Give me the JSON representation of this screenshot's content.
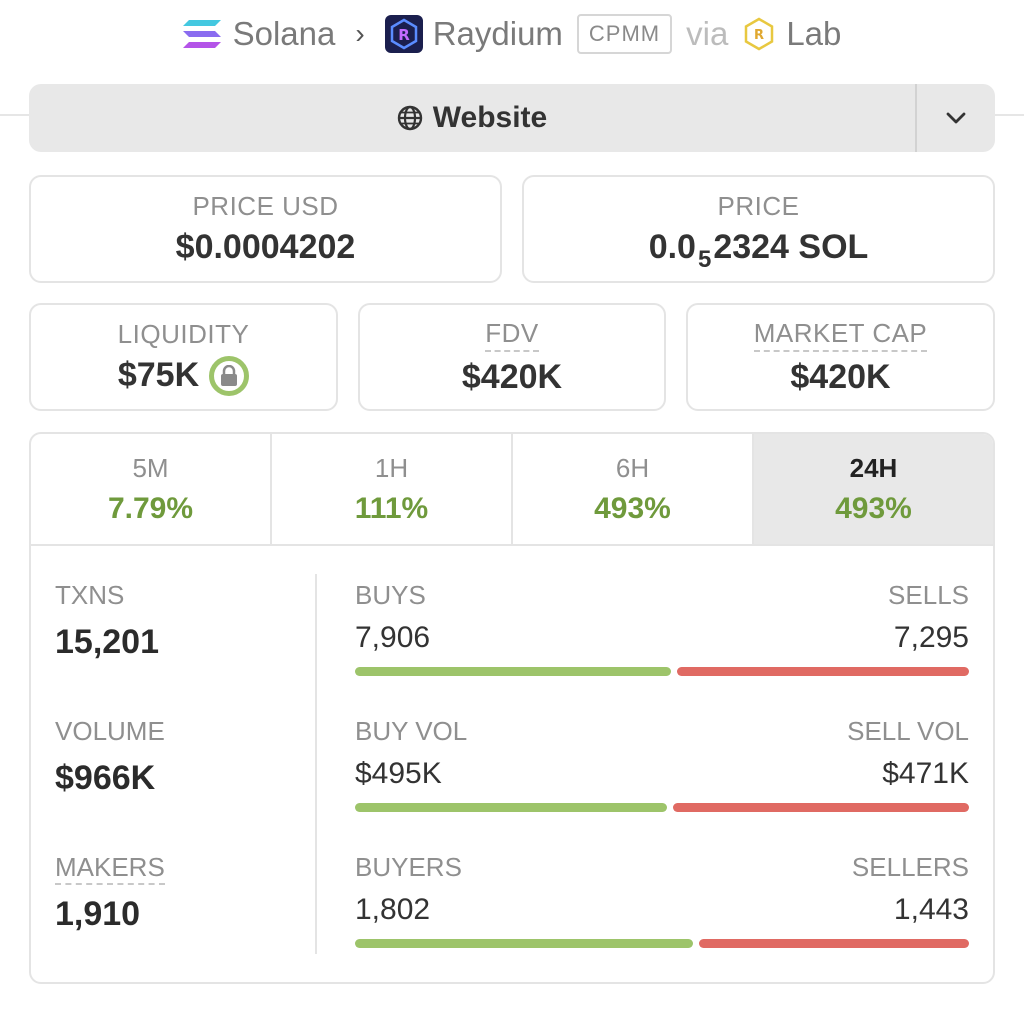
{
  "breadcrumb": {
    "chain": "Solana",
    "dex": "Raydium",
    "pool_type": "CPMM",
    "via": "via",
    "source": "Lab"
  },
  "website": {
    "label": "Website"
  },
  "price_usd": {
    "label": "PRICE USD",
    "value": "$0.0004202"
  },
  "price": {
    "label": "PRICE",
    "prefix": "0.0",
    "zeros": "5",
    "suffix": "2324 SOL"
  },
  "liquidity": {
    "label": "LIQUIDITY",
    "value": "$75K"
  },
  "fdv": {
    "label": "FDV",
    "value": "$420K"
  },
  "market_cap": {
    "label": "MARKET CAP",
    "value": "$420K"
  },
  "tabs": [
    {
      "label": "5M",
      "value": "7.79%"
    },
    {
      "label": "1H",
      "value": "111%"
    },
    {
      "label": "6H",
      "value": "493%"
    },
    {
      "label": "24H",
      "value": "493%",
      "active": true
    }
  ],
  "stats": {
    "txns": {
      "label": "TXNS",
      "value": "15,201"
    },
    "volume": {
      "label": "VOLUME",
      "value": "$966K"
    },
    "makers": {
      "label": "MAKERS",
      "value": "1,910"
    },
    "buys": {
      "label": "BUYS",
      "value": "7,906",
      "count": 7906
    },
    "sells": {
      "label": "SELLS",
      "value": "7,295",
      "count": 7295
    },
    "buy_vol": {
      "label": "BUY VOL",
      "value": "$495K",
      "amount": 495
    },
    "sell_vol": {
      "label": "SELL VOL",
      "value": "$471K",
      "amount": 471
    },
    "buyers": {
      "label": "BUYERS",
      "value": "1,802",
      "count": 1802
    },
    "sellers": {
      "label": "SELLERS",
      "value": "1,443",
      "count": 1443
    }
  },
  "colors": {
    "positive": "#6f9a3c",
    "buy_bar": "#9dc46a",
    "sell_bar": "#e06a63"
  }
}
